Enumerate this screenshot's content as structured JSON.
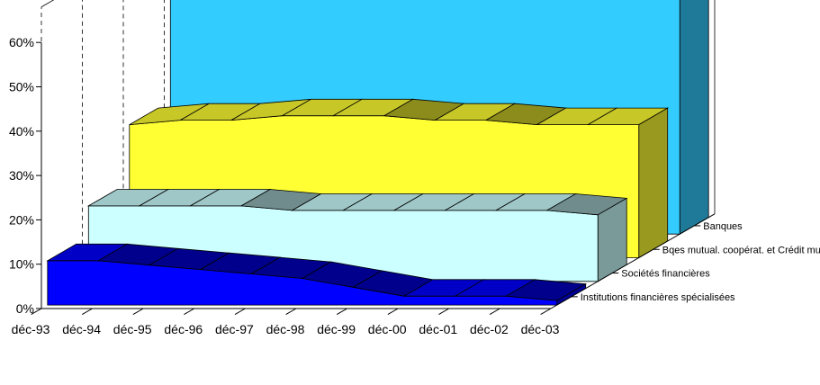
{
  "chart_data": {
    "type": "area",
    "three_d": true,
    "categories": [
      "déc-93",
      "déc-94",
      "déc-95",
      "déc-96",
      "déc-97",
      "déc-98",
      "déc-99",
      "déc-00",
      "déc-01",
      "déc-02",
      "déc-03"
    ],
    "ylim": [
      0,
      60
    ],
    "yticks": [
      0,
      10,
      20,
      30,
      40,
      50,
      60
    ],
    "ytick_labels": [
      "0%",
      "10%",
      "20%",
      "30%",
      "40%",
      "50%",
      "60%"
    ],
    "grid": "vertical",
    "series": [
      {
        "name": "Banques",
        "color": "#33CCFF",
        "values": [
          62,
          62,
          61,
          61,
          62,
          62,
          63,
          63,
          64,
          64,
          63
        ]
      },
      {
        "name": "Bqes mutual. coopérat. et Crédit municipal",
        "color": "#FFFF33",
        "values": [
          30,
          31,
          31,
          32,
          32,
          32,
          31,
          31,
          30,
          30,
          30
        ]
      },
      {
        "name": "Sociétés financières",
        "color": "#CCFFFF",
        "values": [
          17,
          17,
          17,
          17,
          16,
          16,
          16,
          16,
          16,
          16,
          15
        ]
      },
      {
        "name": "Institutions financières spécialisées",
        "color": "#0000FF",
        "values": [
          10,
          10,
          9,
          8,
          7,
          6,
          4,
          2,
          2,
          2,
          1
        ]
      }
    ]
  }
}
